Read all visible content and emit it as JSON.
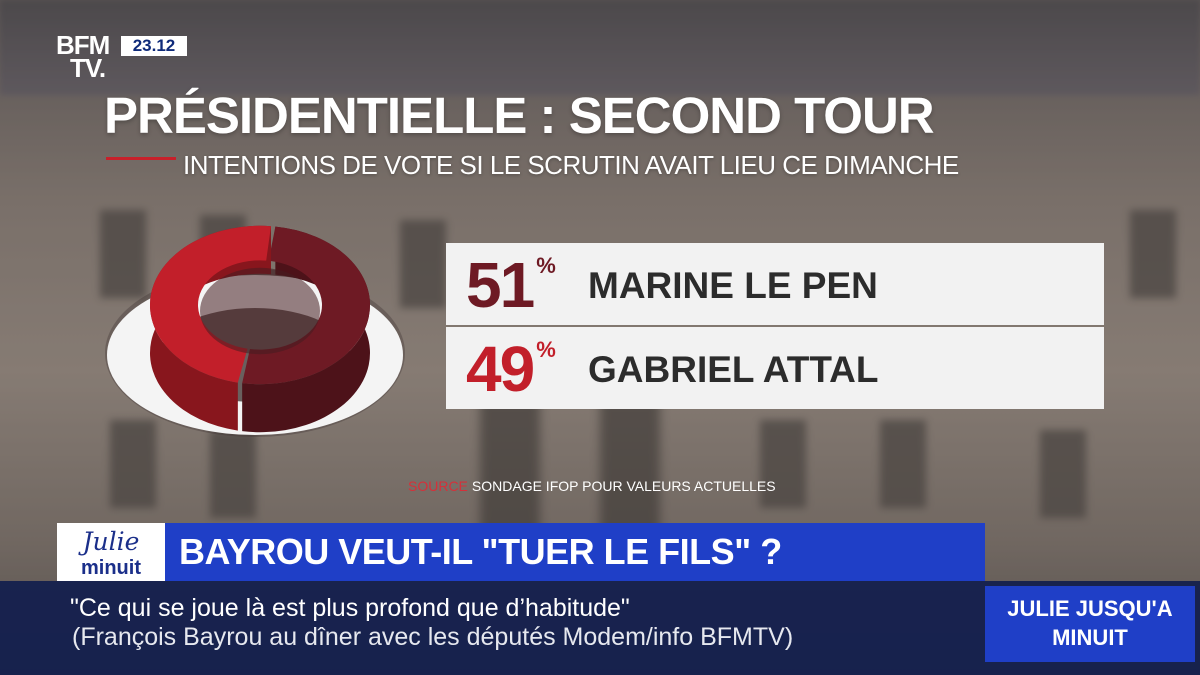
{
  "logo": {
    "line1": "BFM",
    "line2": "TV."
  },
  "clock": "23.12",
  "title": "PRÉSIDENTIELLE : SECOND TOUR",
  "subtitle": "INTENTIONS DE VOTE SI LE SCRUTIN AVAIT LIEU CE DIMANCHE",
  "chart_data": {
    "type": "pie",
    "categories": [
      "MARINE LE PEN",
      "GABRIEL ATTAL"
    ],
    "values": [
      51,
      49
    ],
    "value_suffix": "%",
    "colors": [
      "#6e1a24",
      "#c21f2a"
    ]
  },
  "source": {
    "label": "SOURCE",
    "text": "SONDAGE IFOP POUR VALEURS ACTUELLES"
  },
  "show": {
    "logo_top": "Julie",
    "logo_bottom": "minuit",
    "box": "JULIE JUSQU'A MINUIT"
  },
  "headline": "BAYROU VEUT-IL \"TUER LE FILS\" ?",
  "quote": {
    "line1": "\"Ce qui se joue là est plus profond que d’habitude\"",
    "line2": "(François Bayrou au dîner avec les députés Modem/info BFMTV)"
  }
}
